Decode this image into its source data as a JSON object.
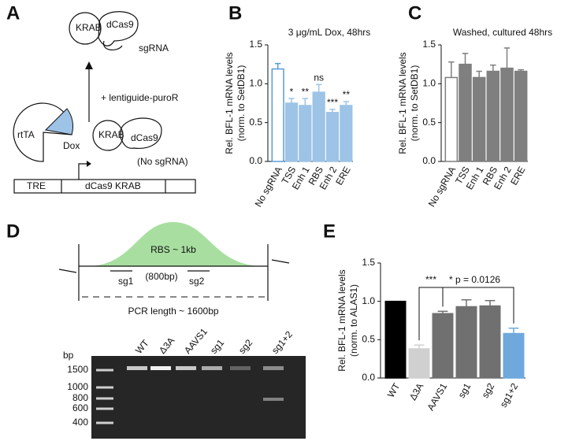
{
  "panel_labels": [
    "A",
    "B",
    "C",
    "D",
    "E"
  ],
  "diagram_a": {
    "top_complex": [
      "KRAB",
      "dCas9",
      "sgRNA"
    ],
    "step": "+ lentiguide-puroR",
    "inducer": [
      "rtTA",
      "Dox"
    ],
    "bottom_complex": [
      "KRAB",
      "dCas9",
      "(No sgRNA)"
    ],
    "construct": [
      "TRE",
      "dCas9 KRAB"
    ]
  },
  "diagram_d": {
    "region": [
      "RBS ~ 1kb",
      "(800bp)"
    ],
    "guides": [
      "sg1",
      "sg2"
    ],
    "pcr": "PCR length ~ 1600bp",
    "gel_unit": "bp",
    "gel_lanes": [
      "WT",
      "Δ3A",
      "AAVS1",
      "sg1",
      "sg2",
      "sg1+2"
    ],
    "gel_ladder": [
      "1500",
      "1000",
      "800",
      "600",
      "400"
    ]
  },
  "chart_data": [
    {
      "type": "bar",
      "title": "3 μg/mL Dox, 48hrs",
      "y_label": [
        "Rel. BFL-1 mRNA levels",
        "(norm. to SetDB1)"
      ],
      "categories": [
        "No sgRNA",
        "TSS",
        "Enh 1",
        "RBS",
        "Enh 2",
        "ERE"
      ],
      "values": [
        1.19,
        0.75,
        0.72,
        0.89,
        0.63,
        0.72
      ],
      "errors": [
        0.07,
        0.06,
        0.09,
        0.1,
        0.04,
        0.05
      ],
      "annotations": [
        null,
        "*",
        "**",
        "ns",
        "***",
        "**"
      ],
      "colors": [
        "#ffffff",
        "#9dc3e6",
        "#9dc3e6",
        "#9dc3e6",
        "#9dc3e6",
        "#9dc3e6"
      ],
      "edgecolors": [
        "#5b9bd5",
        "#9dc3e6",
        "#9dc3e6",
        "#9dc3e6",
        "#9dc3e6",
        "#9dc3e6"
      ],
      "ylim": [
        0,
        1.5
      ],
      "yticks": [
        {
          "value": 0,
          "label": "0.0"
        },
        {
          "value": 0.5,
          "label": "0.5"
        },
        {
          "value": 1,
          "label": "1.0"
        },
        {
          "value": 1.5,
          "label": "1.5"
        }
      ]
    },
    {
      "type": "bar",
      "title": "Washed, cultured 48hrs",
      "y_label": [
        "Rel. BFL-1 mRNA levels",
        "(norm. to SetDB1)"
      ],
      "categories": [
        "No sgRNA",
        "TSS",
        "Enh 1",
        "RBS",
        "Enh 2",
        "ERE"
      ],
      "values": [
        1.08,
        1.25,
        1.08,
        1.16,
        1.2,
        1.16
      ],
      "errors": [
        0.2,
        0.14,
        0.08,
        0.08,
        0.26,
        0.02
      ],
      "colors": [
        "#ffffff",
        "#7f7f7f",
        "#7f7f7f",
        "#7f7f7f",
        "#7f7f7f",
        "#7f7f7f"
      ],
      "edgecolors": [
        "#7f7f7f",
        "#7f7f7f",
        "#7f7f7f",
        "#7f7f7f",
        "#7f7f7f",
        "#7f7f7f"
      ],
      "ylim": [
        0,
        1.5
      ],
      "yticks": [
        {
          "value": 0,
          "label": "0.0"
        },
        {
          "value": 0.5,
          "label": "0.5"
        },
        {
          "value": 1,
          "label": "1.0"
        },
        {
          "value": 1.5,
          "label": "1.5"
        }
      ]
    },
    {
      "type": "bar",
      "y_label": [
        "Rel. BFL-1 mRNA levels",
        "(norm. to ALAS1)"
      ],
      "categories": [
        "WT",
        "Δ3A",
        "AAVS1",
        "sg1",
        "sg2",
        "sg1+2"
      ],
      "values": [
        1.0,
        0.38,
        0.84,
        0.93,
        0.94,
        0.58
      ],
      "errors": [
        0,
        0.05,
        0.03,
        0.09,
        0.07,
        0.07
      ],
      "colors": [
        "#000000",
        "#d0d0d0",
        "#707070",
        "#707070",
        "#707070",
        "#6fa8dc"
      ],
      "edgecolors": [
        "#000000",
        "#d0d0d0",
        "#707070",
        "#707070",
        "#707070",
        "#6fa8dc"
      ],
      "brackets": [
        "***",
        "* p = 0.0126"
      ],
      "ylim": [
        0,
        1.5
      ],
      "yticks": [
        {
          "value": 0,
          "label": "0.0"
        },
        {
          "value": 0.5,
          "label": "0.5"
        },
        {
          "value": 1,
          "label": "1.0"
        },
        {
          "value": 1.5,
          "label": "1.5"
        }
      ]
    }
  ]
}
